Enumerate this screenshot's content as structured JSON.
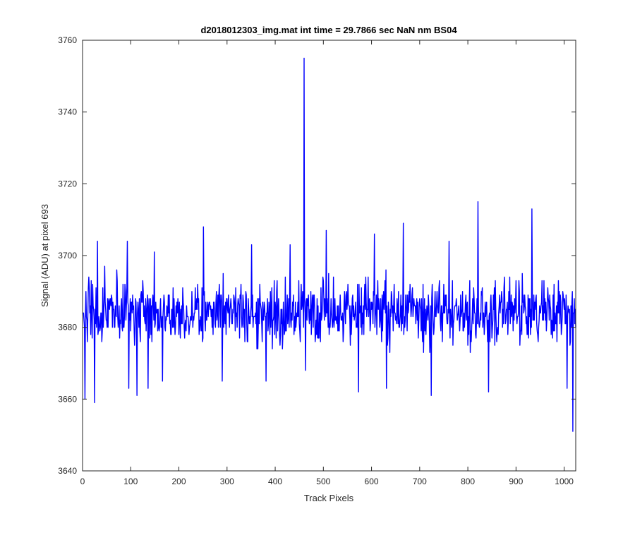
{
  "chart_data": {
    "type": "line",
    "title": "d2018012303_img.mat int time = 29.7866 sec  NaN nm BS04",
    "xlabel": "Track Pixels",
    "ylabel": "Signal (ADU) at pixel 693",
    "xlim": [
      0,
      1024
    ],
    "ylim": [
      3640,
      3760
    ],
    "xticks": [
      0,
      100,
      200,
      300,
      400,
      500,
      600,
      700,
      800,
      900,
      1000
    ],
    "yticks": [
      3640,
      3660,
      3680,
      3700,
      3720,
      3740,
      3760
    ],
    "grid": false,
    "line_color": "#0000ff",
    "noise": {
      "center": 3684,
      "typical_range": [
        3665,
        3703
      ],
      "seed": 20180123,
      "n_points": 1024
    },
    "notable_points": [
      {
        "x": 1,
        "y": 3684
      },
      {
        "x": 4,
        "y": 3660
      },
      {
        "x": 12,
        "y": 3694
      },
      {
        "x": 24,
        "y": 3659
      },
      {
        "x": 30,
        "y": 3704
      },
      {
        "x": 45,
        "y": 3697
      },
      {
        "x": 92,
        "y": 3704
      },
      {
        "x": 95,
        "y": 3663
      },
      {
        "x": 112,
        "y": 3661
      },
      {
        "x": 135,
        "y": 3663
      },
      {
        "x": 148,
        "y": 3701
      },
      {
        "x": 165,
        "y": 3665
      },
      {
        "x": 250,
        "y": 3708
      },
      {
        "x": 289,
        "y": 3665
      },
      {
        "x": 350,
        "y": 3703
      },
      {
        "x": 380,
        "y": 3665
      },
      {
        "x": 430,
        "y": 3703
      },
      {
        "x": 459,
        "y": 3755
      },
      {
        "x": 462,
        "y": 3668
      },
      {
        "x": 505,
        "y": 3707
      },
      {
        "x": 572,
        "y": 3662
      },
      {
        "x": 605,
        "y": 3706
      },
      {
        "x": 630,
        "y": 3663
      },
      {
        "x": 665,
        "y": 3709
      },
      {
        "x": 723,
        "y": 3661
      },
      {
        "x": 760,
        "y": 3704
      },
      {
        "x": 820,
        "y": 3715
      },
      {
        "x": 842,
        "y": 3662
      },
      {
        "x": 932,
        "y": 3713
      },
      {
        "x": 1005,
        "y": 3663
      },
      {
        "x": 1017,
        "y": 3651
      },
      {
        "x": 1023,
        "y": 3680
      }
    ]
  }
}
